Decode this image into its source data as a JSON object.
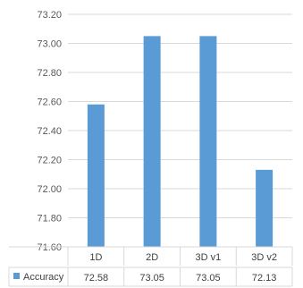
{
  "chart_data": {
    "type": "bar",
    "categories": [
      "1D",
      "2D",
      "3D v1",
      "3D v2"
    ],
    "series": [
      {
        "name": "Accuracy",
        "values": [
          72.58,
          73.05,
          73.05,
          72.13
        ],
        "color": "#5b9bd5"
      }
    ],
    "value_labels": [
      "72.58",
      "73.05",
      "73.05",
      "72.13"
    ],
    "yticks": [
      "71.60",
      "71.80",
      "72.00",
      "72.20",
      "72.40",
      "72.60",
      "72.80",
      "73.00",
      "73.20"
    ],
    "ylim": [
      71.6,
      73.2
    ],
    "grid": true,
    "legend": "data-table-left",
    "data_table": true
  }
}
